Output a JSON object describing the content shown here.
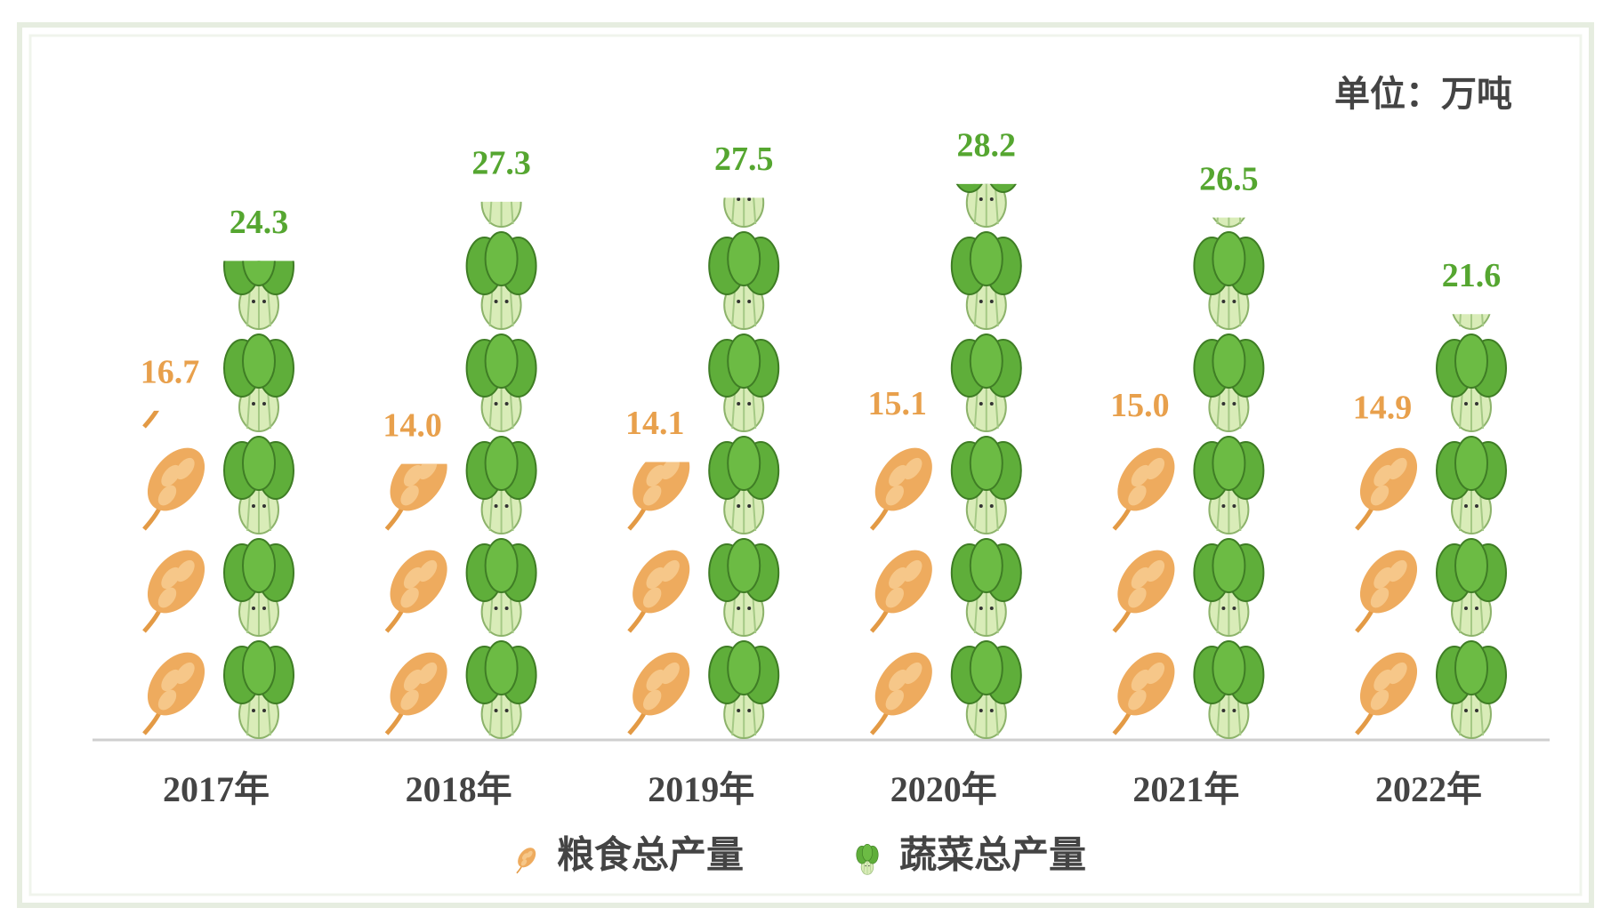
{
  "chart_data": {
    "type": "pictograph-bar",
    "annotation": "单位：万吨",
    "categories": [
      "2017年",
      "2018年",
      "2019年",
      "2020年",
      "2021年",
      "2022年"
    ],
    "series": [
      {
        "name": "粮食总产量",
        "color": "#e8a04c",
        "values": [
          16.7,
          14.0,
          14.1,
          15.1,
          15.0,
          14.9
        ],
        "value_labels": [
          "16.7",
          "14.0",
          "14.1",
          "15.1",
          "15.0",
          "14.9"
        ]
      },
      {
        "name": "蔬菜总产量",
        "color": "#55a630",
        "values": [
          24.3,
          27.3,
          27.5,
          28.2,
          26.5,
          21.6
        ],
        "value_labels": [
          "24.3",
          "27.3",
          "27.5",
          "28.2",
          "26.5",
          "21.6"
        ]
      }
    ],
    "ylim": [
      0,
      30
    ]
  }
}
